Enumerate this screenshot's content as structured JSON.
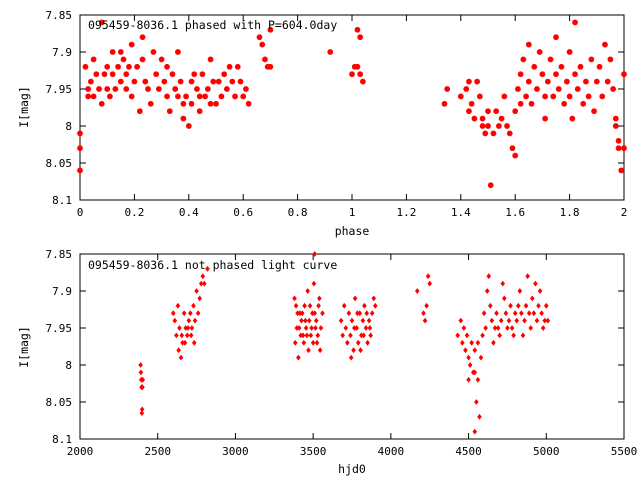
{
  "chart_data": [
    {
      "type": "scatter",
      "title": "095459-8036.1 phased with P=604.0day",
      "xlabel": "phase",
      "ylabel": "I[mag]",
      "xlim": [
        0,
        2
      ],
      "ylim": [
        8.1,
        7.85
      ],
      "y_inverted": true,
      "x_ticks": [
        "0",
        "0.2",
        "0.4",
        "0.6",
        "0.8",
        "1",
        "1.2",
        "1.4",
        "1.6",
        "1.8",
        "2"
      ],
      "y_ticks": [
        "7.85",
        "7.9",
        "7.95",
        "8",
        "8.05",
        "8.1"
      ],
      "marker": "star",
      "color": "#ff0000",
      "grid": false,
      "points": [
        [
          0.0,
          8.01
        ],
        [
          0.0,
          8.03
        ],
        [
          0.0,
          8.06
        ],
        [
          0.02,
          7.92
        ],
        [
          0.03,
          7.95
        ],
        [
          0.03,
          7.96
        ],
        [
          0.04,
          7.94
        ],
        [
          0.05,
          7.91
        ],
        [
          0.05,
          7.96
        ],
        [
          0.06,
          7.93
        ],
        [
          0.07,
          7.95
        ],
        [
          0.08,
          7.97
        ],
        [
          0.08,
          7.86
        ],
        [
          0.09,
          7.93
        ],
        [
          0.1,
          7.92
        ],
        [
          0.1,
          7.95
        ],
        [
          0.11,
          7.96
        ],
        [
          0.12,
          7.9
        ],
        [
          0.12,
          7.93
        ],
        [
          0.13,
          7.95
        ],
        [
          0.14,
          7.92
        ],
        [
          0.15,
          7.9
        ],
        [
          0.15,
          7.94
        ],
        [
          0.16,
          7.91
        ],
        [
          0.17,
          7.93
        ],
        [
          0.17,
          7.95
        ],
        [
          0.18,
          7.92
        ],
        [
          0.19,
          7.89
        ],
        [
          0.19,
          7.96
        ],
        [
          0.2,
          7.94
        ],
        [
          0.21,
          7.92
        ],
        [
          0.22,
          7.98
        ],
        [
          0.23,
          7.88
        ],
        [
          0.23,
          7.91
        ],
        [
          0.24,
          7.94
        ],
        [
          0.25,
          7.95
        ],
        [
          0.26,
          7.97
        ],
        [
          0.27,
          7.9
        ],
        [
          0.28,
          7.93
        ],
        [
          0.29,
          7.95
        ],
        [
          0.3,
          7.91
        ],
        [
          0.31,
          7.94
        ],
        [
          0.32,
          7.92
        ],
        [
          0.32,
          7.96
        ],
        [
          0.33,
          7.98
        ],
        [
          0.34,
          7.93
        ],
        [
          0.35,
          7.95
        ],
        [
          0.36,
          7.9
        ],
        [
          0.36,
          7.96
        ],
        [
          0.37,
          7.94
        ],
        [
          0.38,
          7.99
        ],
        [
          0.38,
          7.97
        ],
        [
          0.39,
          7.96
        ],
        [
          0.4,
          8.0
        ],
        [
          0.41,
          7.97
        ],
        [
          0.41,
          7.94
        ],
        [
          0.42,
          7.93
        ],
        [
          0.43,
          7.95
        ],
        [
          0.44,
          7.96
        ],
        [
          0.44,
          7.98
        ],
        [
          0.45,
          7.93
        ],
        [
          0.46,
          7.96
        ],
        [
          0.47,
          7.95
        ],
        [
          0.48,
          7.97
        ],
        [
          0.48,
          7.91
        ],
        [
          0.49,
          7.94
        ],
        [
          0.5,
          7.97
        ],
        [
          0.51,
          7.94
        ],
        [
          0.52,
          7.96
        ],
        [
          0.53,
          7.93
        ],
        [
          0.54,
          7.95
        ],
        [
          0.55,
          7.92
        ],
        [
          0.56,
          7.94
        ],
        [
          0.57,
          7.96
        ],
        [
          0.58,
          7.92
        ],
        [
          0.59,
          7.94
        ],
        [
          0.6,
          7.96
        ],
        [
          0.61,
          7.95
        ],
        [
          0.62,
          7.97
        ],
        [
          0.66,
          7.88
        ],
        [
          0.67,
          7.89
        ],
        [
          0.68,
          7.91
        ],
        [
          0.69,
          7.92
        ],
        [
          0.7,
          7.92
        ],
        [
          0.7,
          7.87
        ],
        [
          0.92,
          7.9
        ],
        [
          1.0,
          7.93
        ],
        [
          1.01,
          7.92
        ],
        [
          1.02,
          7.92
        ],
        [
          1.02,
          7.87
        ],
        [
          1.03,
          7.88
        ],
        [
          1.03,
          7.93
        ],
        [
          1.04,
          7.94
        ],
        [
          1.34,
          7.97
        ],
        [
          1.35,
          7.95
        ],
        [
          1.4,
          7.96
        ],
        [
          1.42,
          7.95
        ],
        [
          1.43,
          7.94
        ],
        [
          1.43,
          7.98
        ],
        [
          1.44,
          7.97
        ],
        [
          1.45,
          7.99
        ],
        [
          1.46,
          7.94
        ],
        [
          1.47,
          7.96
        ],
        [
          1.48,
          7.99
        ],
        [
          1.48,
          8.0
        ],
        [
          1.49,
          8.01
        ],
        [
          1.5,
          7.98
        ],
        [
          1.5,
          8.0
        ],
        [
          1.51,
          8.08
        ],
        [
          1.52,
          8.01
        ],
        [
          1.53,
          7.98
        ],
        [
          1.54,
          8.0
        ],
        [
          1.55,
          7.99
        ],
        [
          1.56,
          7.96
        ],
        [
          1.57,
          8.0
        ],
        [
          1.58,
          8.01
        ],
        [
          1.59,
          8.03
        ],
        [
          1.6,
          8.04
        ],
        [
          1.6,
          7.98
        ],
        [
          1.61,
          7.95
        ],
        [
          1.62,
          7.97
        ],
        [
          1.62,
          7.93
        ],
        [
          1.63,
          7.91
        ],
        [
          1.64,
          7.96
        ],
        [
          1.65,
          7.94
        ],
        [
          1.65,
          7.89
        ],
        [
          1.66,
          7.97
        ],
        [
          1.67,
          7.92
        ],
        [
          1.68,
          7.95
        ],
        [
          1.69,
          7.9
        ],
        [
          1.7,
          7.93
        ],
        [
          1.71,
          7.96
        ],
        [
          1.71,
          7.99
        ],
        [
          1.72,
          7.94
        ],
        [
          1.73,
          7.91
        ],
        [
          1.74,
          7.96
        ],
        [
          1.75,
          7.93
        ],
        [
          1.75,
          7.88
        ],
        [
          1.76,
          7.95
        ],
        [
          1.77,
          7.92
        ],
        [
          1.78,
          7.97
        ],
        [
          1.79,
          7.94
        ],
        [
          1.8,
          7.9
        ],
        [
          1.8,
          7.96
        ],
        [
          1.81,
          7.99
        ],
        [
          1.82,
          7.93
        ],
        [
          1.82,
          7.86
        ],
        [
          1.83,
          7.95
        ],
        [
          1.84,
          7.92
        ],
        [
          1.85,
          7.97
        ],
        [
          1.86,
          7.94
        ],
        [
          1.87,
          7.96
        ],
        [
          1.88,
          7.91
        ],
        [
          1.89,
          7.98
        ],
        [
          1.9,
          7.94
        ],
        [
          1.91,
          7.92
        ],
        [
          1.92,
          7.96
        ],
        [
          1.93,
          7.89
        ],
        [
          1.94,
          7.94
        ],
        [
          1.95,
          7.91
        ],
        [
          1.96,
          7.95
        ],
        [
          1.97,
          7.99
        ],
        [
          1.97,
          8.0
        ],
        [
          1.98,
          8.02
        ],
        [
          1.98,
          8.03
        ],
        [
          1.99,
          8.06
        ],
        [
          2.0,
          7.93
        ],
        [
          2.0,
          8.03
        ]
      ]
    },
    {
      "type": "scatter",
      "title": "095459-8036.1 not phased light curve",
      "xlabel": "hjd0",
      "ylabel": "I[mag]",
      "xlim": [
        2000,
        5500
      ],
      "ylim": [
        8.1,
        7.85
      ],
      "y_inverted": true,
      "x_ticks": [
        "2000",
        "2500",
        "3000",
        "3500",
        "4000",
        "4500",
        "5000",
        "5500"
      ],
      "y_ticks": [
        "7.85",
        "7.9",
        "7.95",
        "8",
        "8.05",
        "8.1"
      ],
      "marker": "diamond",
      "color": "#ff0000",
      "grid": false,
      "points": [
        [
          2390,
          8.0
        ],
        [
          2392,
          8.01
        ],
        [
          2394,
          8.02
        ],
        [
          2396,
          8.03
        ],
        [
          2398,
          8.065
        ],
        [
          2400,
          8.06
        ],
        [
          2402,
          8.03
        ],
        [
          2404,
          8.02
        ],
        [
          2600,
          7.93
        ],
        [
          2610,
          7.94
        ],
        [
          2620,
          7.96
        ],
        [
          2630,
          7.92
        ],
        [
          2640,
          7.95
        ],
        [
          2650,
          7.99
        ],
        [
          2660,
          7.97
        ],
        [
          2670,
          7.93
        ],
        [
          2680,
          7.95
        ],
        [
          2690,
          7.96
        ],
        [
          2700,
          7.94
        ],
        [
          2710,
          7.93
        ],
        [
          2720,
          7.95
        ],
        [
          2730,
          7.92
        ],
        [
          2740,
          7.94
        ],
        [
          2750,
          7.9
        ],
        [
          2760,
          7.93
        ],
        [
          2770,
          7.91
        ],
        [
          2780,
          7.89
        ],
        [
          2790,
          7.88
        ],
        [
          2800,
          7.89
        ],
        [
          2820,
          7.87
        ],
        [
          2635,
          7.98
        ],
        [
          2655,
          7.96
        ],
        [
          2675,
          7.97
        ],
        [
          2695,
          7.95
        ],
        [
          2715,
          7.96
        ],
        [
          2735,
          7.97
        ],
        [
          3380,
          7.91
        ],
        [
          3390,
          7.92
        ],
        [
          3400,
          7.93
        ],
        [
          3410,
          7.95
        ],
        [
          3420,
          7.96
        ],
        [
          3430,
          7.93
        ],
        [
          3440,
          7.97
        ],
        [
          3450,
          7.94
        ],
        [
          3460,
          7.96
        ],
        [
          3470,
          7.98
        ],
        [
          3480,
          7.92
        ],
        [
          3490,
          7.95
        ],
        [
          3500,
          7.97
        ],
        [
          3510,
          7.93
        ],
        [
          3520,
          7.94
        ],
        [
          3530,
          7.96
        ],
        [
          3540,
          7.91
        ],
        [
          3550,
          7.95
        ],
        [
          3560,
          7.93
        ],
        [
          3385,
          7.97
        ],
        [
          3405,
          7.99
        ],
        [
          3425,
          7.94
        ],
        [
          3445,
          7.92
        ],
        [
          3465,
          7.9
        ],
        [
          3485,
          7.96
        ],
        [
          3505,
          7.89
        ],
        [
          3525,
          7.97
        ],
        [
          3545,
          7.98
        ],
        [
          3395,
          7.95
        ],
        [
          3415,
          7.93
        ],
        [
          3435,
          7.96
        ],
        [
          3455,
          7.95
        ],
        [
          3475,
          7.94
        ],
        [
          3495,
          7.93
        ],
        [
          3515,
          7.95
        ],
        [
          3535,
          7.92
        ],
        [
          3510,
          7.85
        ],
        [
          3680,
          7.94
        ],
        [
          3690,
          7.96
        ],
        [
          3700,
          7.92
        ],
        [
          3710,
          7.95
        ],
        [
          3720,
          7.97
        ],
        [
          3730,
          7.93
        ],
        [
          3740,
          7.96
        ],
        [
          3750,
          7.94
        ],
        [
          3760,
          7.98
        ],
        [
          3770,
          7.91
        ],
        [
          3780,
          7.95
        ],
        [
          3790,
          7.97
        ],
        [
          3800,
          7.93
        ],
        [
          3810,
          7.96
        ],
        [
          3820,
          7.94
        ],
        [
          3830,
          7.92
        ],
        [
          3840,
          7.95
        ],
        [
          3850,
          7.97
        ],
        [
          3860,
          7.94
        ],
        [
          3870,
          7.96
        ],
        [
          3880,
          7.93
        ],
        [
          3890,
          7.91
        ],
        [
          3900,
          7.92
        ],
        [
          3745,
          7.99
        ],
        [
          3765,
          7.95
        ],
        [
          3785,
          7.93
        ],
        [
          3805,
          7.98
        ],
        [
          3825,
          7.96
        ],
        [
          3845,
          7.93
        ],
        [
          3865,
          7.95
        ],
        [
          4170,
          7.9
        ],
        [
          4210,
          7.93
        ],
        [
          4220,
          7.94
        ],
        [
          4230,
          7.92
        ],
        [
          4240,
          7.88
        ],
        [
          4250,
          7.89
        ],
        [
          4430,
          7.96
        ],
        [
          4450,
          7.94
        ],
        [
          4460,
          7.97
        ],
        [
          4470,
          7.95
        ],
        [
          4480,
          7.98
        ],
        [
          4490,
          7.96
        ],
        [
          4500,
          7.99
        ],
        [
          4510,
          8.0
        ],
        [
          4520,
          7.97
        ],
        [
          4530,
          8.01
        ],
        [
          4540,
          7.98
        ],
        [
          4550,
          8.05
        ],
        [
          4560,
          8.02
        ],
        [
          4570,
          8.07
        ],
        [
          4580,
          7.99
        ],
        [
          4590,
          7.96
        ],
        [
          4600,
          7.93
        ],
        [
          4610,
          7.95
        ],
        [
          4620,
          7.9
        ],
        [
          4630,
          7.88
        ],
        [
          4640,
          7.92
        ],
        [
          4650,
          7.94
        ],
        [
          4660,
          7.97
        ],
        [
          4670,
          7.95
        ],
        [
          4680,
          7.93
        ],
        [
          4690,
          7.95
        ],
        [
          4700,
          7.96
        ],
        [
          4710,
          7.94
        ],
        [
          4720,
          7.89
        ],
        [
          4730,
          7.91
        ],
        [
          4740,
          7.93
        ],
        [
          4750,
          7.95
        ],
        [
          4760,
          7.94
        ],
        [
          4770,
          7.92
        ],
        [
          4780,
          7.95
        ],
        [
          4790,
          7.96
        ],
        [
          4800,
          7.93
        ],
        [
          4810,
          7.94
        ],
        [
          4820,
          7.92
        ],
        [
          4830,
          7.9
        ],
        [
          4840,
          7.93
        ],
        [
          4850,
          7.96
        ],
        [
          4860,
          7.94
        ],
        [
          4870,
          7.92
        ],
        [
          4880,
          7.88
        ],
        [
          4890,
          7.93
        ],
        [
          4900,
          7.95
        ],
        [
          4910,
          7.91
        ],
        [
          4920,
          7.93
        ],
        [
          4930,
          7.89
        ],
        [
          4940,
          7.94
        ],
        [
          4950,
          7.92
        ],
        [
          4960,
          7.9
        ],
        [
          4970,
          7.93
        ],
        [
          4980,
          7.95
        ],
        [
          4990,
          7.94
        ],
        [
          5000,
          7.92
        ],
        [
          5010,
          7.94
        ],
        [
          4540,
          8.01
        ],
        [
          4500,
          8.02
        ],
        [
          4560,
          7.97
        ],
        [
          4540,
          8.09
        ]
      ]
    }
  ]
}
